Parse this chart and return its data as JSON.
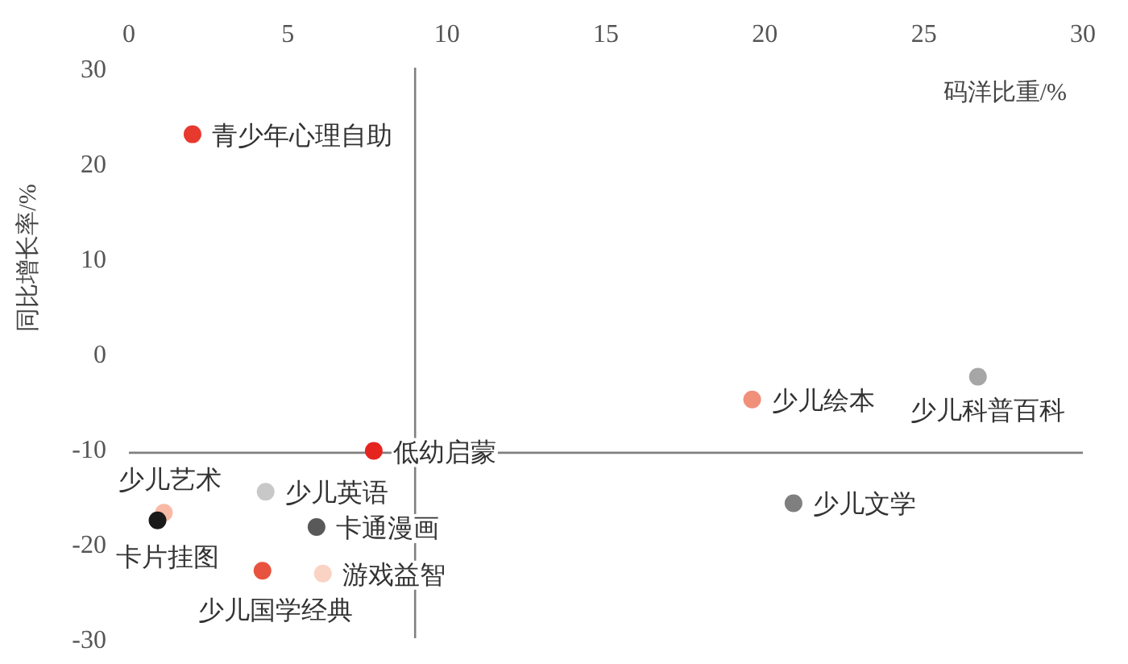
{
  "chart_data": {
    "type": "scatter",
    "xlabel": "码洋比重/%",
    "ylabel": "同比增长率/%",
    "xlim": [
      0,
      30
    ],
    "ylim": [
      -30,
      30
    ],
    "xticks": [
      0,
      5,
      10,
      15,
      20,
      25,
      30
    ],
    "yticks": [
      -30,
      -20,
      -10,
      0,
      10,
      20,
      30
    ],
    "grid": false,
    "marker": "circle",
    "ref_lines": [
      {
        "axis": "x",
        "value": 9,
        "color": "#808080"
      },
      {
        "axis": "y",
        "value": -10.5,
        "color": "#808080"
      }
    ],
    "series": [
      {
        "name": "青少年心理自助",
        "color": "#e8392f",
        "x": [
          2.0
        ],
        "values": [
          23
        ]
      },
      {
        "name": "低幼启蒙",
        "color": "#e52420",
        "x": [
          7.7
        ],
        "values": [
          -10.3
        ]
      },
      {
        "name": "少儿绘本",
        "color": "#f0907a",
        "x": [
          19.6
        ],
        "values": [
          -4.9
        ]
      },
      {
        "name": "少儿科普百科",
        "color": "#a6a6a6",
        "x": [
          26.7
        ],
        "values": [
          -2.5
        ]
      },
      {
        "name": "少儿文学",
        "color": "#7f7f7f",
        "x": [
          20.9
        ],
        "values": [
          -15.8
        ]
      },
      {
        "name": "少儿英语",
        "color": "#c8c8c8",
        "x": [
          4.3
        ],
        "values": [
          -14.6
        ]
      },
      {
        "name": "卡通漫画",
        "color": "#595959",
        "x": [
          5.9
        ],
        "values": [
          -18.3
        ]
      },
      {
        "name": "少儿艺术",
        "color": "#f8b9a5",
        "x": [
          1.1
        ],
        "values": [
          -16.8
        ]
      },
      {
        "name": "卡片挂图",
        "color": "#1a1a1a",
        "x": [
          0.9
        ],
        "values": [
          -17.6
        ]
      },
      {
        "name": "少儿国学经典",
        "color": "#e8533f",
        "x": [
          4.2
        ],
        "values": [
          -22.9
        ]
      },
      {
        "name": "游戏益智",
        "color": "#fad3c5",
        "x": [
          6.1
        ],
        "values": [
          -23.2
        ]
      }
    ]
  }
}
